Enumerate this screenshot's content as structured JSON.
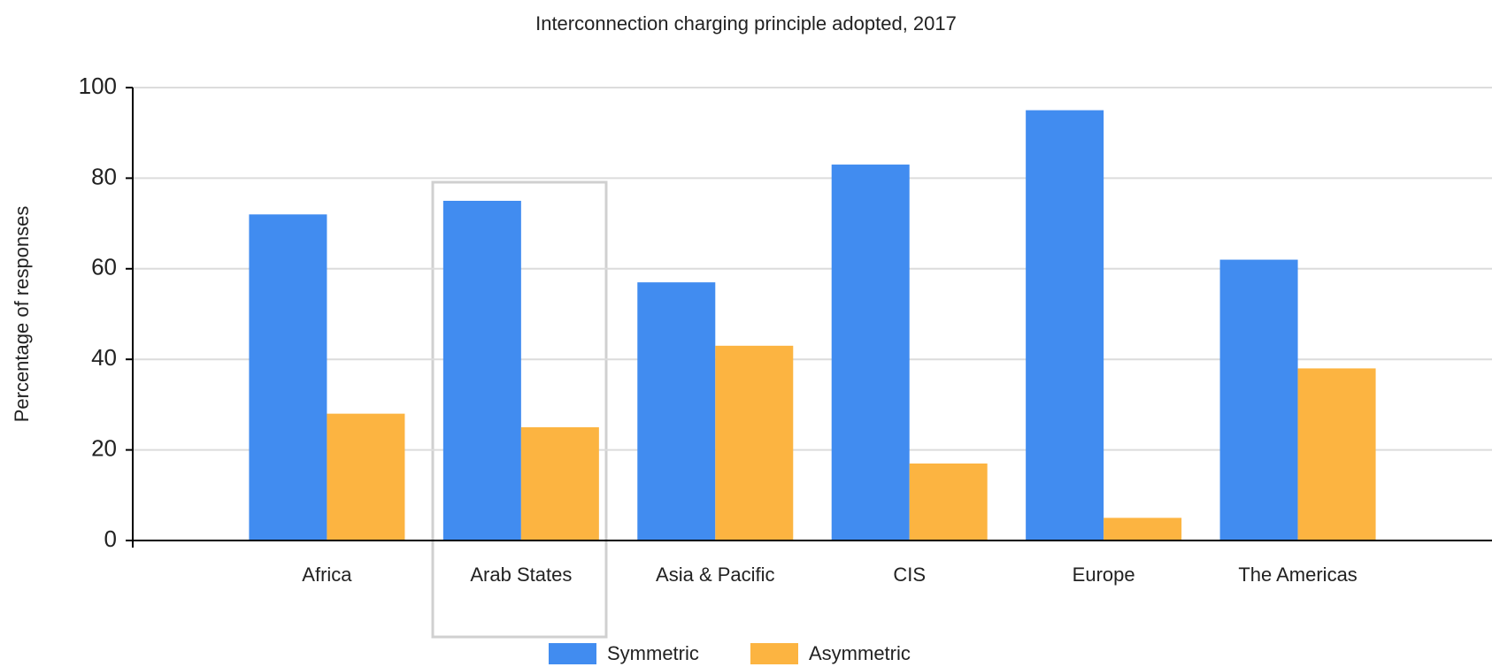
{
  "chart_data": {
    "type": "bar",
    "title": "Interconnection charging principle adopted, 2017",
    "y_label": "Percentage of responses",
    "categories": [
      "Africa",
      "Arab States",
      "Asia & Pacific",
      "CIS",
      "Europe",
      "The Americas"
    ],
    "series": [
      {
        "name": "Symmetric",
        "color": "#418cf0",
        "values": [
          72,
          75,
          57,
          83,
          95,
          62
        ]
      },
      {
        "name": "Asymmetric",
        "color": "#fcb441",
        "values": [
          28,
          25,
          43,
          17,
          5,
          38
        ]
      }
    ],
    "ylim": [
      0,
      100
    ],
    "yticks": [
      0,
      20,
      40,
      60,
      80,
      100
    ],
    "grid": true,
    "legend": "bottom"
  }
}
